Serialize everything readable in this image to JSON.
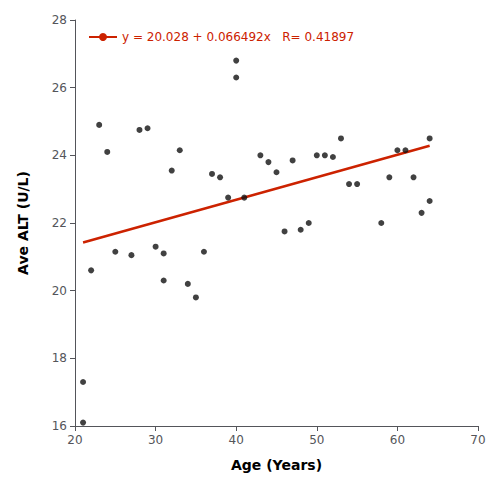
{
  "chart_data": {
    "type": "scatter",
    "xlabel": "Age (Years)",
    "ylabel": "Ave ALT (U/L)",
    "xlim": [
      20,
      70
    ],
    "ylim": [
      16,
      28
    ],
    "xticks": [
      20,
      30,
      40,
      50,
      60,
      70
    ],
    "yticks": [
      16,
      18,
      20,
      22,
      24,
      26,
      28
    ],
    "grid": false,
    "legend": "upper left",
    "series": [
      {
        "type": "scatter",
        "color": "#111111",
        "marker": "circle",
        "x": [
          21,
          21,
          22,
          23,
          24,
          25,
          27,
          28,
          29,
          30,
          31,
          31,
          32,
          33,
          34,
          35,
          36,
          37,
          38,
          39,
          40,
          40,
          41,
          43,
          44,
          45,
          46,
          47,
          48,
          49,
          50,
          51,
          52,
          53,
          54,
          55,
          58,
          59,
          60,
          61,
          62,
          63,
          64,
          64
        ],
        "values": [
          16.1,
          17.3,
          20.6,
          24.9,
          24.1,
          21.15,
          21.05,
          24.75,
          24.8,
          21.3,
          21.1,
          20.3,
          23.55,
          24.15,
          20.2,
          19.8,
          21.15,
          23.45,
          23.35,
          22.75,
          26.3,
          26.8,
          22.75,
          24.0,
          23.8,
          23.5,
          21.75,
          23.85,
          21.8,
          22.0,
          24.0,
          24.0,
          23.95,
          24.5,
          23.15,
          23.15,
          22.0,
          23.35,
          24.15,
          24.15,
          23.35,
          22.3,
          24.5,
          22.65
        ]
      },
      {
        "type": "line",
        "name": "y = 20.028 + 0.066492x   R= 0.41897",
        "color": "#CC2200",
        "line_style": "solid",
        "x": [
          21,
          64
        ],
        "values": [
          21.424332,
          24.283488
        ]
      }
    ]
  }
}
